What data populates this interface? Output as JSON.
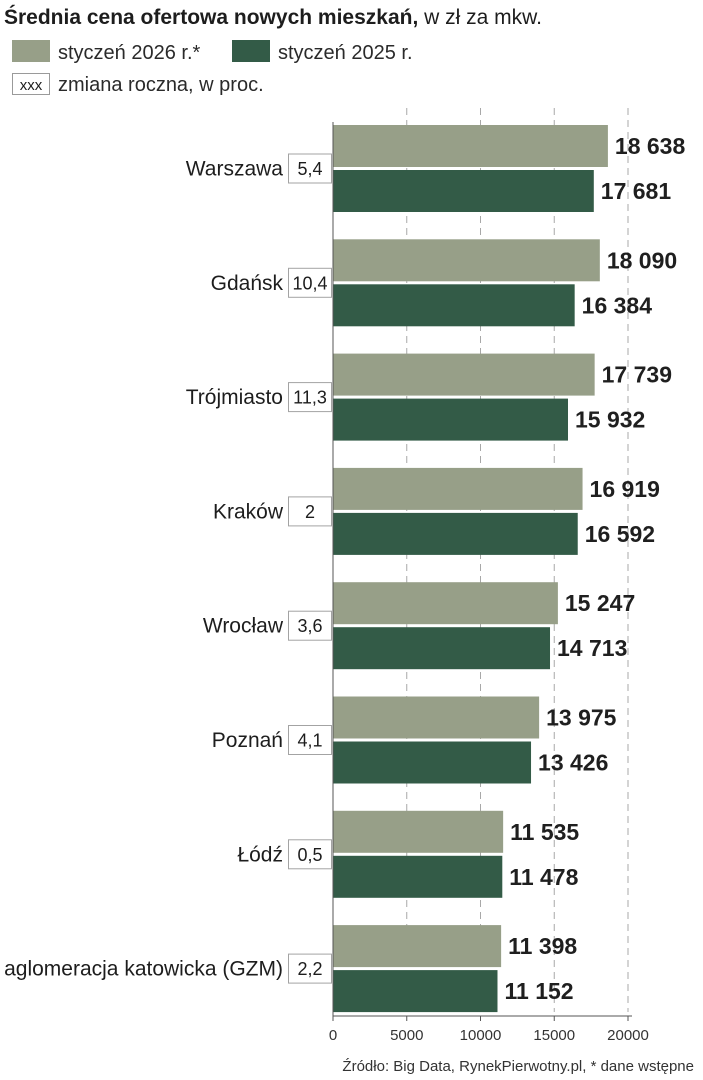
{
  "title_bold": "Średnia cena ofertowa nowych mieszkań,",
  "title_rest": " w zł za mkw.",
  "legend": {
    "series_a": "styczeń 2026 r.*",
    "series_b": "styczeń 2025 r.",
    "change_box": "xxx",
    "change_label": "zmiana roczna, w proc."
  },
  "colors": {
    "series_a": "#979f88",
    "series_b": "#335b47"
  },
  "source": "Źródło:  Big Data, RynekPierwotny.pl, *  dane wstępne",
  "chart_data": {
    "type": "bar",
    "orientation": "horizontal",
    "title": "Średnia cena ofertowa nowych mieszkań, w zł za mkw.",
    "categories": [
      "Warszawa",
      "Gdańsk",
      "Trójmiasto",
      "Kraków",
      "Wrocław",
      "Poznań",
      "Łódź",
      "aglomeracja katowicka (GZM)"
    ],
    "series": [
      {
        "name": "styczeń 2026 r.*",
        "values": [
          18638,
          18090,
          17739,
          16919,
          15247,
          13975,
          11535,
          11398
        ],
        "labels": [
          "18 638",
          "18 090",
          "17 739",
          "16 919",
          "15 247",
          "13 975",
          "11 535",
          "11 398"
        ]
      },
      {
        "name": "styczeń 2025 r.",
        "values": [
          17681,
          16384,
          15932,
          16592,
          14713,
          13426,
          11478,
          11152
        ],
        "labels": [
          "17 681",
          "16 384",
          "15 932",
          "16 592",
          "14 713",
          "13 426",
          "11 478",
          "11 152"
        ]
      }
    ],
    "change_pct": [
      "5,4",
      "10,4",
      "11,3",
      "2",
      "3,6",
      "4,1",
      "0,5",
      "2,2"
    ],
    "xlim": [
      0,
      20000
    ],
    "xticks": [
      0,
      5000,
      10000,
      15000,
      20000
    ],
    "xtick_labels": [
      "0",
      "5000",
      "10000",
      "15000",
      "20000"
    ],
    "grid": "vertical dashed"
  }
}
